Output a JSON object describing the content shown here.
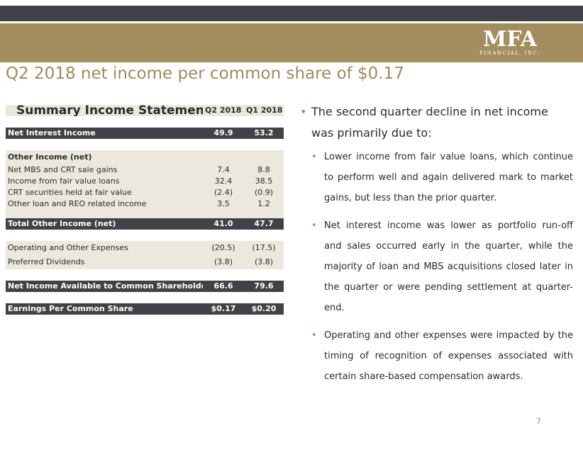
{
  "logo": {
    "main": "MFA",
    "sub": "FINANCIAL, INC."
  },
  "title": "Q2 2018 net income per common share of $0.17",
  "table": {
    "title": "Summary Income Statement",
    "col1": "Q2 2018 $m",
    "col2": "Q1 2018 $m",
    "rows": [
      {
        "label": "Net Interest Income",
        "q2": "49.9",
        "q1": "53.2"
      },
      {
        "label": "Other Income (net)",
        "q2": "",
        "q1": ""
      },
      {
        "label": "Net MBS and CRT sale gains",
        "q2": "7.4",
        "q1": "8.8"
      },
      {
        "label": "Income from fair value loans",
        "q2": "32.4",
        "q1": "38.5"
      },
      {
        "label": "CRT securities held at fair value",
        "q2": "(2.4)",
        "q1": "(0.9)"
      },
      {
        "label": "Other loan and REO related income",
        "q2": "3.5",
        "q1": "1.2"
      },
      {
        "label": "Total Other Income (net)",
        "q2": "41.0",
        "q1": "47.7"
      },
      {
        "label": "Operating and Other Expenses",
        "q2": "(20.5)",
        "q1": "(17.5)"
      },
      {
        "label": "Preferred Dividends",
        "q2": "(3.8)",
        "q1": "(3.8)"
      },
      {
        "label": "Net Income Available to Common Shareholders",
        "q2": "66.6",
        "q1": "79.6"
      },
      {
        "label": "Earnings Per Common Share",
        "q2": "$0.17",
        "q1": "$0.20"
      }
    ]
  },
  "bullets": {
    "main": "The second quarter decline in net income was primarily due to:",
    "subs": [
      "Lower income from fair value loans, which continue to perform well and again delivered mark to market gains, but less than the prior quarter.",
      "Net interest income was lower as portfolio run-off and sales occurred early in the quarter, while the majority of loan and MBS acquisitions closed later in the quarter or were pending settlement at quarter-end.",
      "Operating and other expenses were impacted by the timing of recognition of expenses associated with certain share-based compensation awards."
    ]
  },
  "page_number": "7",
  "colors": {
    "accent": "#a48e5f",
    "dark": "#3f4246",
    "beige": "#ece8de",
    "title": "#9e8a5e"
  }
}
